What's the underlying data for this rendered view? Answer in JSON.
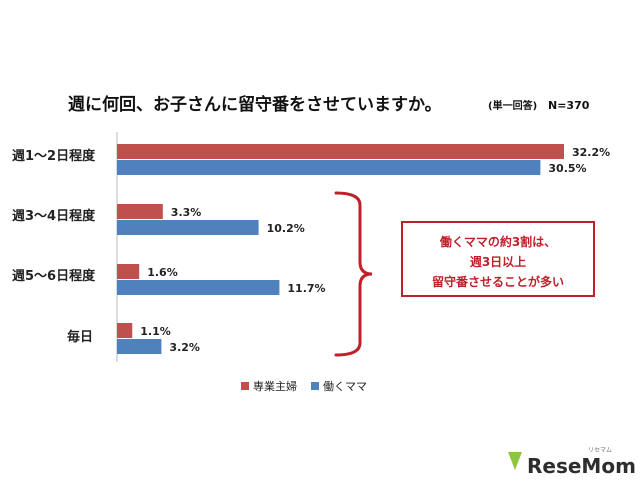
{
  "chart_data": {
    "type": "bar",
    "orientation": "horizontal",
    "title": "週に何回、お子さんに留守番をさせていますか。",
    "title_note": "(単一回答)",
    "sample_size": "N=370",
    "categories": [
      "週1～2日程度",
      "週3～4日程度",
      "週5～6日程度",
      "毎日"
    ],
    "series": [
      {
        "name": "専業主婦",
        "color": "#c0504d",
        "values": [
          32.2,
          3.3,
          1.6,
          1.1
        ],
        "labels": [
          "32.2%",
          "3.3%",
          "1.6%",
          "1.1%"
        ]
      },
      {
        "name": "働くママ",
        "color": "#4f81bd",
        "values": [
          30.5,
          10.2,
          11.7,
          3.2
        ],
        "labels": [
          "30.5%",
          "10.2%",
          "11.7%",
          "3.2%"
        ]
      }
    ],
    "xlim": [
      0,
      32.2
    ],
    "grid": false,
    "legend_position": "bottom-left",
    "annotation": {
      "lines": [
        "働くママの約3割は、",
        "週3日以上",
        "留守番させることが多い"
      ],
      "color": "#c0202a"
    }
  },
  "watermark": {
    "text": "ReseMom",
    "small": "リセマム"
  }
}
